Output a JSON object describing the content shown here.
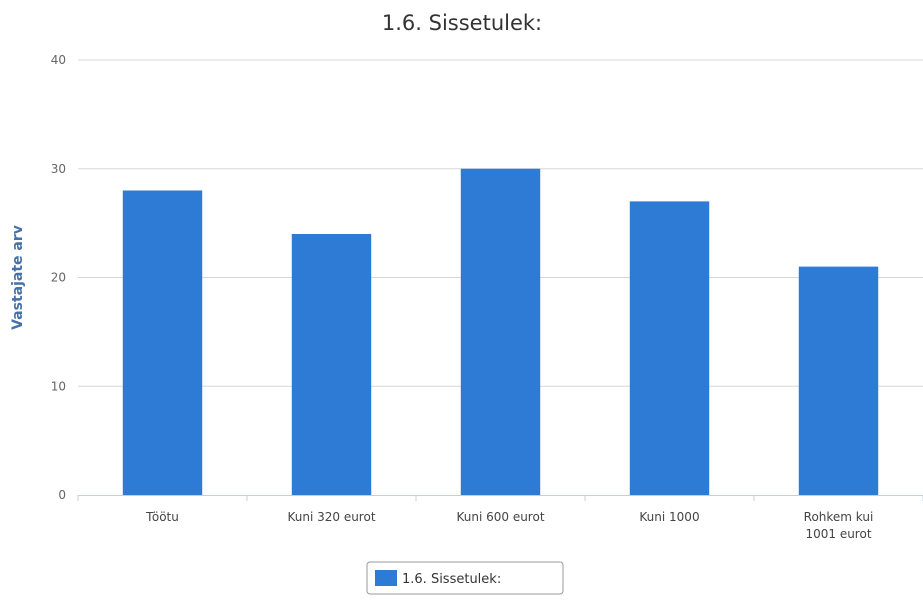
{
  "chart_data": {
    "type": "bar",
    "title": "1.6. Sissetulek:",
    "xlabel": "",
    "ylabel": "Vastajate arv",
    "categories": [
      "Töötu",
      "Kuni 320 eurot",
      "Kuni 600 eurot",
      "Kuni 1000",
      "Rohkem kui 1001 eurot"
    ],
    "series": [
      {
        "name": "1.6. Sissetulek:",
        "values": [
          28,
          24,
          30,
          27,
          21
        ]
      }
    ],
    "ylim": [
      0,
      40
    ],
    "yticks": [
      0,
      10,
      20,
      30,
      40
    ],
    "grid": true,
    "legend_position": "bottom-center",
    "colors": {
      "bar": "#2e7bd6",
      "grid": "#d8d8d8",
      "axis_title": "#4572a7"
    }
  }
}
